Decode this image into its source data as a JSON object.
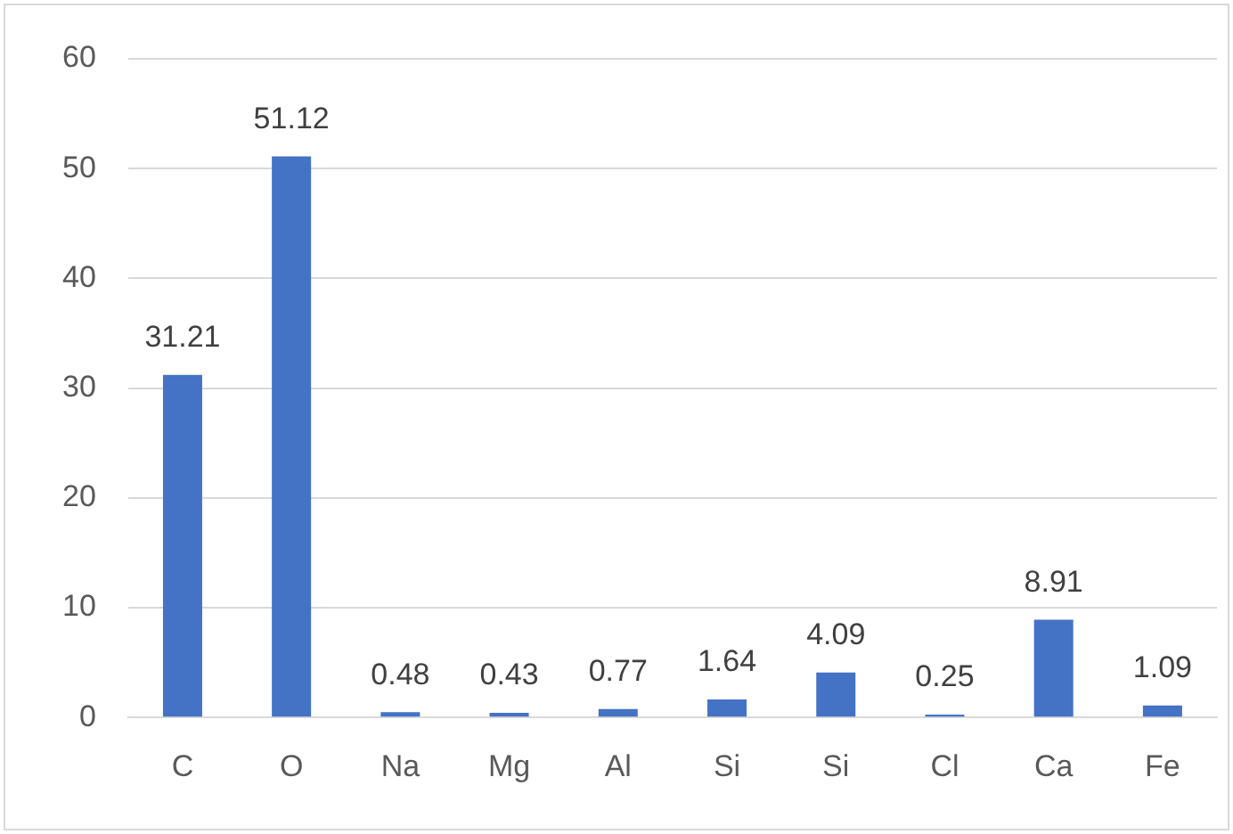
{
  "chart_data": {
    "type": "bar",
    "categories": [
      "C",
      "O",
      "Na",
      "Mg",
      "Al",
      "Si",
      "Si",
      "Cl",
      "Ca",
      "Fe"
    ],
    "values": [
      31.21,
      51.12,
      0.48,
      0.43,
      0.77,
      1.64,
      4.09,
      0.25,
      8.91,
      1.09
    ],
    "color": "#4472c4",
    "ylim": [
      0,
      60
    ],
    "yticks": [
      0,
      10,
      20,
      30,
      40,
      50,
      60
    ],
    "grid": "y",
    "data_labels": true,
    "legend": false
  }
}
